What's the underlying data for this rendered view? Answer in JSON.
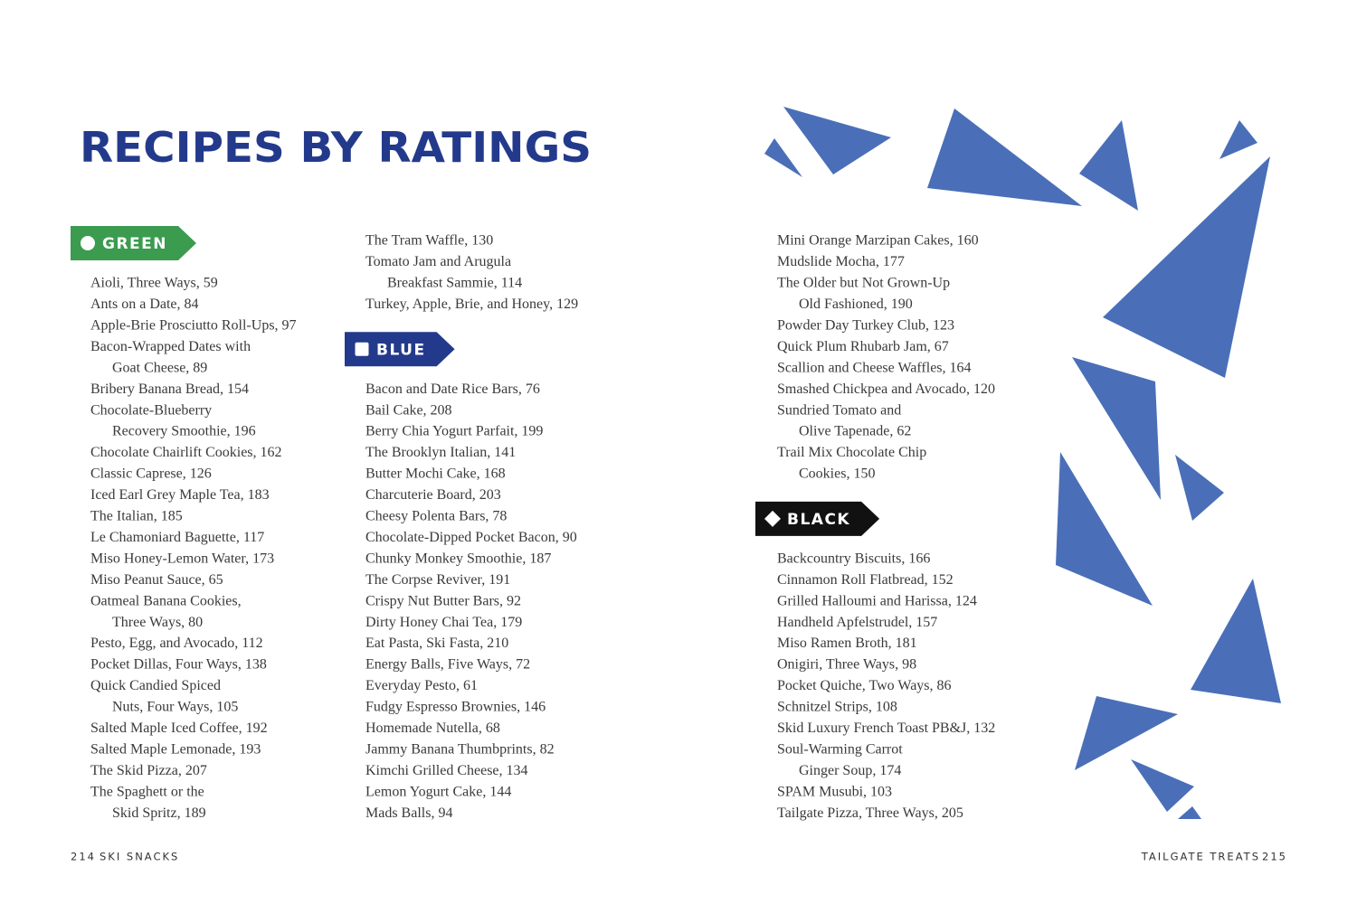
{
  "header": {
    "title": "RECIPES BY RATINGS"
  },
  "sections": [
    {
      "label": "GREEN",
      "color": "#3b9b4f",
      "entries": [
        [
          "Aioli, Three Ways, 59"
        ],
        [
          "Ants on a Date, 84"
        ],
        [
          "Apple-Brie Prosciutto Roll-Ups, 97"
        ],
        [
          "Bacon-Wrapped Dates with",
          "Goat Cheese, 89"
        ],
        [
          "Bribery Banana Bread, 154"
        ],
        [
          "Chocolate-Blueberry",
          "Recovery Smoothie, 196"
        ],
        [
          "Chocolate Chairlift Cookies, 162"
        ],
        [
          "Classic Caprese, 126"
        ],
        [
          "Iced Earl Grey Maple Tea, 183"
        ],
        [
          "The Italian, 185"
        ],
        [
          "Le Chamoniard Baguette, 117"
        ],
        [
          "Miso Honey-Lemon Water, 173"
        ],
        [
          "Miso Peanut Sauce, 65"
        ],
        [
          "Oatmeal Banana Cookies,",
          "Three Ways, 80"
        ],
        [
          "Pesto, Egg, and Avocado, 112"
        ],
        [
          "Pocket Dillas, Four Ways, 138"
        ],
        [
          "Quick Candied Spiced",
          "Nuts, Four Ways, 105"
        ],
        [
          "Salted Maple Iced Coffee, 192"
        ],
        [
          "Salted Maple Lemonade, 193"
        ],
        [
          "The Skid Pizza, 207"
        ],
        [
          "The Spaghett or the",
          "Skid Spritz, 189"
        ],
        [
          "The Tram Waffle, 130"
        ],
        [
          "Tomato Jam and Arugula",
          "Breakfast Sammie, 114"
        ],
        [
          "Turkey, Apple, Brie, and Honey, 129"
        ]
      ]
    },
    {
      "label": "BLUE",
      "color": "#233a8c",
      "entries": [
        [
          "Bacon and Date Rice Bars, 76"
        ],
        [
          "Bail Cake, 208"
        ],
        [
          "Berry Chia Yogurt Parfait, 199"
        ],
        [
          "The Brooklyn Italian, 141"
        ],
        [
          "Butter Mochi Cake, 168"
        ],
        [
          "Charcuterie Board, 203"
        ],
        [
          "Cheesy Polenta Bars, 78"
        ],
        [
          "Chocolate-Dipped Pocket Bacon, 90"
        ],
        [
          "Chunky Monkey Smoothie, 187"
        ],
        [
          "The Corpse Reviver, 191"
        ],
        [
          "Crispy Nut Butter Bars, 92"
        ],
        [
          "Dirty Honey Chai Tea, 179"
        ],
        [
          "Eat Pasta, Ski Fasta, 210"
        ],
        [
          "Energy Balls, Five Ways, 72"
        ],
        [
          "Everyday Pesto, 61"
        ],
        [
          "Fudgy Espresso Brownies, 146"
        ],
        [
          "Homemade Nutella, 68"
        ],
        [
          "Jammy Banana Thumbprints, 82"
        ],
        [
          "Kimchi Grilled Cheese, 134"
        ],
        [
          "Lemon Yogurt Cake, 144"
        ],
        [
          "Mads Balls, 94"
        ],
        [
          "Mini Orange Marzipan Cakes, 160"
        ],
        [
          "Mudslide Mocha, 177"
        ],
        [
          "The Older but Not Grown-Up",
          "Old Fashioned, 190"
        ],
        [
          "Powder Day Turkey Club, 123"
        ],
        [
          "Quick Plum Rhubarb Jam, 67"
        ],
        [
          "Scallion and Cheese Waffles, 164"
        ],
        [
          "Smashed Chickpea and Avocado, 120"
        ],
        [
          "Sundried Tomato and",
          "Olive Tapenade, 62"
        ],
        [
          "Trail Mix Chocolate Chip",
          "Cookies, 150"
        ]
      ]
    },
    {
      "label": "BLACK",
      "color": "#111111",
      "entries": [
        [
          "Backcountry Biscuits, 166"
        ],
        [
          "Cinnamon Roll Flatbread, 152"
        ],
        [
          "Grilled Halloumi and Harissa, 124"
        ],
        [
          "Handheld Apfelstrudel, 157"
        ],
        [
          "Miso Ramen Broth, 181"
        ],
        [
          "Onigiri, Three Ways, 98"
        ],
        [
          "Pocket Quiche, Two Ways, 86"
        ],
        [
          "Schnitzel Strips, 108"
        ],
        [
          "Skid Luxury French Toast PB&J, 132"
        ],
        [
          "Soul-Warming Carrot",
          "Ginger Soup, 174"
        ],
        [
          "SPAM Musubi, 103"
        ],
        [
          "Tailgate Pizza, Three Ways, 205"
        ]
      ]
    }
  ],
  "footer": {
    "left_page": "214",
    "left_section": "SKI SNACKS",
    "right_section": "TAILGATE TREATS",
    "right_page": "215"
  }
}
